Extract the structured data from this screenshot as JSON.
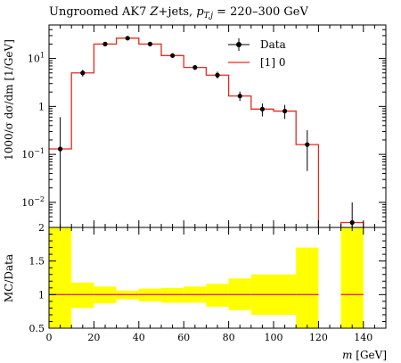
{
  "chart_data": [
    {
      "type": "line",
      "title": "Ungroomed AK7 Z+jets, p_T,j = 220–300 GeV",
      "title_parts": {
        "prefix": "Ungroomed AK7 ",
        "z": "Z",
        "mid": "+jets, ",
        "p": "p",
        "sub": "T,j",
        "suffix": " = 220–300 GeV"
      },
      "ylabel": "1000/σ dσ/dm [1/GeV]",
      "yscale": "log",
      "ylim": [
        0.003,
        50
      ],
      "yticks": [
        {
          "value": 0.01,
          "label": "10",
          "exp": "−2"
        },
        {
          "value": 0.1,
          "label": "10",
          "exp": "−1"
        },
        {
          "value": 1,
          "label": "1",
          "exp": ""
        },
        {
          "value": 10,
          "label": "10",
          "exp": "1"
        }
      ],
      "legend": {
        "position": "top-right",
        "entries": [
          "Data",
          "[1] 0"
        ]
      },
      "series": [
        {
          "name": "Data",
          "marker": "point-errorbar",
          "color": "#000000",
          "x": [
            5,
            15,
            25,
            35,
            45,
            55,
            65,
            75,
            85,
            95,
            105,
            115,
            135
          ],
          "y": [
            0.13,
            5.0,
            20.0,
            26.5,
            20.0,
            11.5,
            6.5,
            4.5,
            1.65,
            0.88,
            0.8,
            0.16,
            0.0038
          ],
          "y_low": [
            0.0001,
            4.2,
            18.0,
            24.5,
            18.0,
            10.3,
            5.8,
            3.8,
            1.3,
            0.62,
            0.55,
            0.045,
            0.002
          ],
          "y_high": [
            0.6,
            5.8,
            22.0,
            28.5,
            22.0,
            12.8,
            7.3,
            5.3,
            2.05,
            1.15,
            1.08,
            0.32,
            0.01
          ]
        },
        {
          "name": "[1] 0",
          "marker": "histogram",
          "color": "#e8281e",
          "bin_edges": [
            0,
            10,
            20,
            30,
            40,
            50,
            60,
            70,
            80,
            90,
            100,
            110,
            120,
            130,
            140
          ],
          "values": [
            0.13,
            5.0,
            20.0,
            26.5,
            20.0,
            11.5,
            6.5,
            4.5,
            1.65,
            0.88,
            0.8,
            0.16,
            0,
            0.0038
          ]
        }
      ]
    },
    {
      "type": "area",
      "ylabel": "MC/Data",
      "xlabel": "m [GeV]",
      "xlabel_parts": {
        "var": "m",
        "unit": " [GeV]"
      },
      "xlim": [
        0,
        150
      ],
      "ylim": [
        0.5,
        2
      ],
      "xticks": [
        0,
        20,
        40,
        60,
        80,
        100,
        120,
        140
      ],
      "yticks": [
        0.5,
        1,
        1.5,
        2
      ],
      "band_color": "#ffff00",
      "ratio_color": "#e8281e",
      "reference": 1,
      "bin_edges": [
        0,
        10,
        20,
        30,
        40,
        50,
        60,
        70,
        80,
        90,
        100,
        110,
        120,
        130,
        140
      ],
      "band_low": [
        0.5,
        0.8,
        0.87,
        0.93,
        0.9,
        0.88,
        0.88,
        0.82,
        0.77,
        0.7,
        0.7,
        0.27,
        null,
        0.5
      ],
      "band_high": [
        2.0,
        1.18,
        1.12,
        1.06,
        1.09,
        1.1,
        1.12,
        1.16,
        1.24,
        1.3,
        1.3,
        1.7,
        null,
        2.0
      ],
      "ratio": [
        1,
        1,
        1,
        1,
        1,
        1,
        1,
        1,
        1,
        1,
        1,
        1,
        null,
        1
      ]
    }
  ]
}
